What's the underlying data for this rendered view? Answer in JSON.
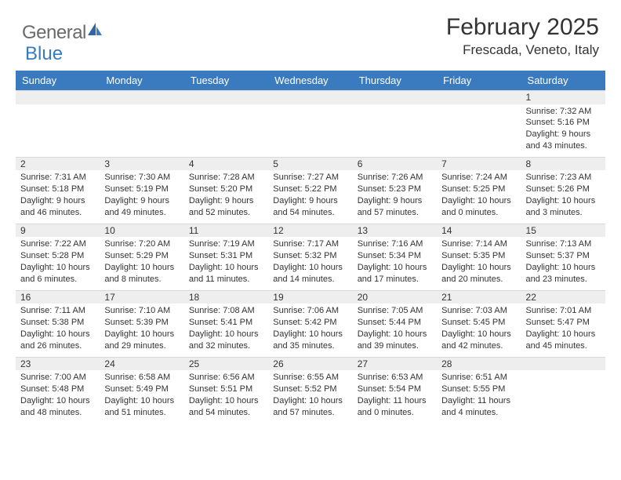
{
  "brand": {
    "part1": "General",
    "part2": "Blue"
  },
  "title": "February 2025",
  "location": "Frescada, Veneto, Italy",
  "colors": {
    "header_bg": "#3a7bbf",
    "daynum_bg": "#eeeeee",
    "text": "#333333"
  },
  "weekdays": [
    "Sunday",
    "Monday",
    "Tuesday",
    "Wednesday",
    "Thursday",
    "Friday",
    "Saturday"
  ],
  "weeks": [
    [
      null,
      null,
      null,
      null,
      null,
      null,
      {
        "d": "1",
        "sr": "Sunrise: 7:32 AM",
        "ss": "Sunset: 5:16 PM",
        "dl1": "Daylight: 9 hours",
        "dl2": "and 43 minutes."
      }
    ],
    [
      {
        "d": "2",
        "sr": "Sunrise: 7:31 AM",
        "ss": "Sunset: 5:18 PM",
        "dl1": "Daylight: 9 hours",
        "dl2": "and 46 minutes."
      },
      {
        "d": "3",
        "sr": "Sunrise: 7:30 AM",
        "ss": "Sunset: 5:19 PM",
        "dl1": "Daylight: 9 hours",
        "dl2": "and 49 minutes."
      },
      {
        "d": "4",
        "sr": "Sunrise: 7:28 AM",
        "ss": "Sunset: 5:20 PM",
        "dl1": "Daylight: 9 hours",
        "dl2": "and 52 minutes."
      },
      {
        "d": "5",
        "sr": "Sunrise: 7:27 AM",
        "ss": "Sunset: 5:22 PM",
        "dl1": "Daylight: 9 hours",
        "dl2": "and 54 minutes."
      },
      {
        "d": "6",
        "sr": "Sunrise: 7:26 AM",
        "ss": "Sunset: 5:23 PM",
        "dl1": "Daylight: 9 hours",
        "dl2": "and 57 minutes."
      },
      {
        "d": "7",
        "sr": "Sunrise: 7:24 AM",
        "ss": "Sunset: 5:25 PM",
        "dl1": "Daylight: 10 hours",
        "dl2": "and 0 minutes."
      },
      {
        "d": "8",
        "sr": "Sunrise: 7:23 AM",
        "ss": "Sunset: 5:26 PM",
        "dl1": "Daylight: 10 hours",
        "dl2": "and 3 minutes."
      }
    ],
    [
      {
        "d": "9",
        "sr": "Sunrise: 7:22 AM",
        "ss": "Sunset: 5:28 PM",
        "dl1": "Daylight: 10 hours",
        "dl2": "and 6 minutes."
      },
      {
        "d": "10",
        "sr": "Sunrise: 7:20 AM",
        "ss": "Sunset: 5:29 PM",
        "dl1": "Daylight: 10 hours",
        "dl2": "and 8 minutes."
      },
      {
        "d": "11",
        "sr": "Sunrise: 7:19 AM",
        "ss": "Sunset: 5:31 PM",
        "dl1": "Daylight: 10 hours",
        "dl2": "and 11 minutes."
      },
      {
        "d": "12",
        "sr": "Sunrise: 7:17 AM",
        "ss": "Sunset: 5:32 PM",
        "dl1": "Daylight: 10 hours",
        "dl2": "and 14 minutes."
      },
      {
        "d": "13",
        "sr": "Sunrise: 7:16 AM",
        "ss": "Sunset: 5:34 PM",
        "dl1": "Daylight: 10 hours",
        "dl2": "and 17 minutes."
      },
      {
        "d": "14",
        "sr": "Sunrise: 7:14 AM",
        "ss": "Sunset: 5:35 PM",
        "dl1": "Daylight: 10 hours",
        "dl2": "and 20 minutes."
      },
      {
        "d": "15",
        "sr": "Sunrise: 7:13 AM",
        "ss": "Sunset: 5:37 PM",
        "dl1": "Daylight: 10 hours",
        "dl2": "and 23 minutes."
      }
    ],
    [
      {
        "d": "16",
        "sr": "Sunrise: 7:11 AM",
        "ss": "Sunset: 5:38 PM",
        "dl1": "Daylight: 10 hours",
        "dl2": "and 26 minutes."
      },
      {
        "d": "17",
        "sr": "Sunrise: 7:10 AM",
        "ss": "Sunset: 5:39 PM",
        "dl1": "Daylight: 10 hours",
        "dl2": "and 29 minutes."
      },
      {
        "d": "18",
        "sr": "Sunrise: 7:08 AM",
        "ss": "Sunset: 5:41 PM",
        "dl1": "Daylight: 10 hours",
        "dl2": "and 32 minutes."
      },
      {
        "d": "19",
        "sr": "Sunrise: 7:06 AM",
        "ss": "Sunset: 5:42 PM",
        "dl1": "Daylight: 10 hours",
        "dl2": "and 35 minutes."
      },
      {
        "d": "20",
        "sr": "Sunrise: 7:05 AM",
        "ss": "Sunset: 5:44 PM",
        "dl1": "Daylight: 10 hours",
        "dl2": "and 39 minutes."
      },
      {
        "d": "21",
        "sr": "Sunrise: 7:03 AM",
        "ss": "Sunset: 5:45 PM",
        "dl1": "Daylight: 10 hours",
        "dl2": "and 42 minutes."
      },
      {
        "d": "22",
        "sr": "Sunrise: 7:01 AM",
        "ss": "Sunset: 5:47 PM",
        "dl1": "Daylight: 10 hours",
        "dl2": "and 45 minutes."
      }
    ],
    [
      {
        "d": "23",
        "sr": "Sunrise: 7:00 AM",
        "ss": "Sunset: 5:48 PM",
        "dl1": "Daylight: 10 hours",
        "dl2": "and 48 minutes."
      },
      {
        "d": "24",
        "sr": "Sunrise: 6:58 AM",
        "ss": "Sunset: 5:49 PM",
        "dl1": "Daylight: 10 hours",
        "dl2": "and 51 minutes."
      },
      {
        "d": "25",
        "sr": "Sunrise: 6:56 AM",
        "ss": "Sunset: 5:51 PM",
        "dl1": "Daylight: 10 hours",
        "dl2": "and 54 minutes."
      },
      {
        "d": "26",
        "sr": "Sunrise: 6:55 AM",
        "ss": "Sunset: 5:52 PM",
        "dl1": "Daylight: 10 hours",
        "dl2": "and 57 minutes."
      },
      {
        "d": "27",
        "sr": "Sunrise: 6:53 AM",
        "ss": "Sunset: 5:54 PM",
        "dl1": "Daylight: 11 hours",
        "dl2": "and 0 minutes."
      },
      {
        "d": "28",
        "sr": "Sunrise: 6:51 AM",
        "ss": "Sunset: 5:55 PM",
        "dl1": "Daylight: 11 hours",
        "dl2": "and 4 minutes."
      },
      null
    ]
  ]
}
